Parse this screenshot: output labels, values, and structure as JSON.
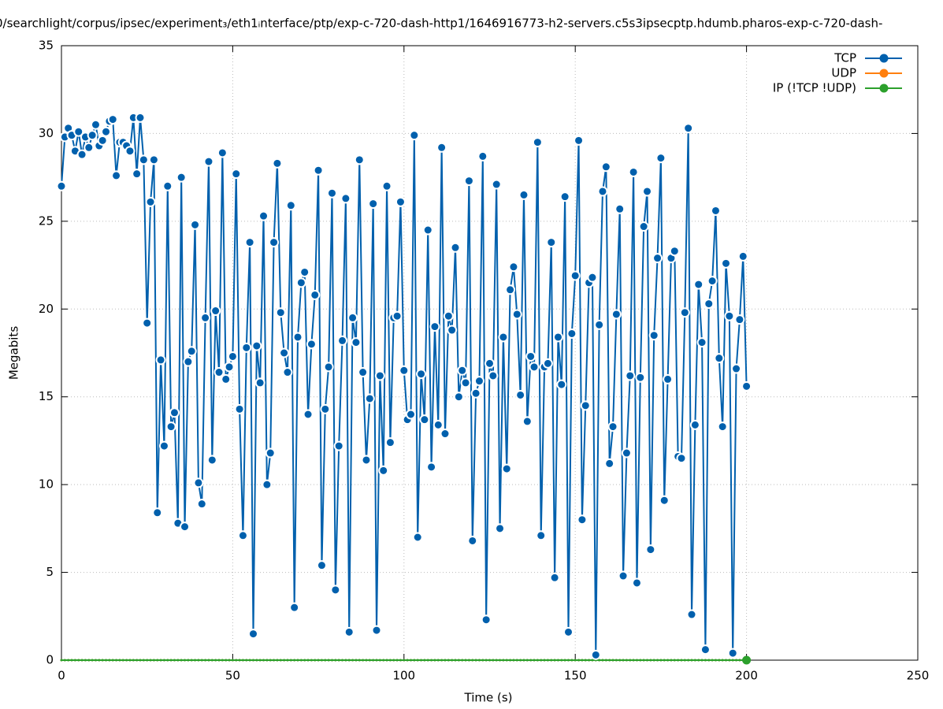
{
  "chart_data": {
    "type": "line",
    "title": "0/searchlight/corpus/ipsec/experiment₃/eth1ᵢnterface/ptp/exp-c-720-dash-http1/1646916773-h2-servers.c5s3ipsecptp.hdumb.pharos-exp-c-720-dash-",
    "x_label": "Time (s)",
    "y_label": "Megabits",
    "xlim": [
      0,
      250
    ],
    "xticks": [
      0,
      50,
      100,
      150,
      200,
      250
    ],
    "ylim": [
      0,
      35
    ],
    "yticks": [
      0,
      5,
      10,
      15,
      20,
      25,
      30,
      35
    ],
    "grid": true,
    "legend": "top-right",
    "x": [
      0,
      1,
      2,
      3,
      4,
      5,
      6,
      7,
      8,
      9,
      10,
      11,
      12,
      13,
      14,
      15,
      16,
      17,
      18,
      19,
      20,
      21,
      22,
      23,
      24,
      25,
      26,
      27,
      28,
      29,
      30,
      31,
      32,
      33,
      34,
      35,
      36,
      37,
      38,
      39,
      40,
      41,
      42,
      43,
      44,
      45,
      46,
      47,
      48,
      49,
      50,
      51,
      52,
      53,
      54,
      55,
      56,
      57,
      58,
      59,
      60,
      61,
      62,
      63,
      64,
      65,
      66,
      67,
      68,
      69,
      70,
      71,
      72,
      73,
      74,
      75,
      76,
      77,
      78,
      79,
      80,
      81,
      82,
      83,
      84,
      85,
      86,
      87,
      88,
      89,
      90,
      91,
      92,
      93,
      94,
      95,
      96,
      97,
      98,
      99,
      100,
      101,
      102,
      103,
      104,
      105,
      106,
      107,
      108,
      109,
      110,
      111,
      112,
      113,
      114,
      115,
      116,
      117,
      118,
      119,
      120,
      121,
      122,
      123,
      124,
      125,
      126,
      127,
      128,
      129,
      130,
      131,
      132,
      133,
      134,
      135,
      136,
      137,
      138,
      139,
      140,
      141,
      142,
      143,
      144,
      145,
      146,
      147,
      148,
      149,
      150,
      151,
      152,
      153,
      154,
      155,
      156,
      157,
      158,
      159,
      160,
      161,
      162,
      163,
      164,
      165,
      166,
      167,
      168,
      169,
      170,
      171,
      172,
      173,
      174,
      175,
      176,
      177,
      178,
      179,
      180,
      181,
      182,
      183,
      184,
      185,
      186,
      187,
      188,
      189,
      190,
      191,
      192,
      193,
      194,
      195,
      196,
      197,
      198,
      199,
      200
    ],
    "series": [
      {
        "name": "TCP",
        "color": "#0060ad",
        "values": [
          27.0,
          29.8,
          30.3,
          29.9,
          29.0,
          30.1,
          28.8,
          29.8,
          29.2,
          29.9,
          30.5,
          29.3,
          29.6,
          30.1,
          30.7,
          30.8,
          27.6,
          29.5,
          29.5,
          29.3,
          29.0,
          30.9,
          27.7,
          30.9,
          28.5,
          19.2,
          26.1,
          28.5,
          8.4,
          17.1,
          12.2,
          27.0,
          13.3,
          14.1,
          7.8,
          27.5,
          7.6,
          17.0,
          17.6,
          24.8,
          10.1,
          8.9,
          19.5,
          28.4,
          11.4,
          19.9,
          16.4,
          28.9,
          16.0,
          16.7,
          17.3,
          27.7,
          14.3,
          7.1,
          17.8,
          23.8,
          1.5,
          17.9,
          15.8,
          25.3,
          10.0,
          11.8,
          23.8,
          28.3,
          19.8,
          17.5,
          16.4,
          25.9,
          3.0,
          18.4,
          21.5,
          22.1,
          14.0,
          18.0,
          20.8,
          27.9,
          5.4,
          14.3,
          16.7,
          26.6,
          4.0,
          12.2,
          18.2,
          26.3,
          1.6,
          19.5,
          18.1,
          28.5,
          16.4,
          11.4,
          14.9,
          26.0,
          1.7,
          16.2,
          10.8,
          27.0,
          12.4,
          19.5,
          19.6,
          26.1,
          16.5,
          13.7,
          14.0,
          29.9,
          7.0,
          16.3,
          13.7,
          24.5,
          11.0,
          19.0,
          13.4,
          29.2,
          12.9,
          19.6,
          18.8,
          23.5,
          15.0,
          16.5,
          15.8,
          27.3,
          6.8,
          15.2,
          15.9,
          28.7,
          2.3,
          16.9,
          16.2,
          27.1,
          7.5,
          18.4,
          10.9,
          21.1,
          22.4,
          19.7,
          15.1,
          26.5,
          13.6,
          17.3,
          16.7,
          29.5,
          7.1,
          16.7,
          16.9,
          23.8,
          4.7,
          18.4,
          15.7,
          26.4,
          1.6,
          18.6,
          21.9,
          29.6,
          8.0,
          14.5,
          21.5,
          21.8,
          0.3,
          19.1,
          26.7,
          28.1,
          11.2,
          13.3,
          19.7,
          25.7,
          4.8,
          11.8,
          16.2,
          27.8,
          4.4,
          16.1,
          24.7,
          26.7,
          6.3,
          18.5,
          22.9,
          28.6,
          9.1,
          16.0,
          22.9,
          23.3,
          11.6,
          11.5,
          19.8,
          30.3,
          2.6,
          13.4,
          21.4,
          18.1,
          0.6,
          20.3,
          21.6,
          25.6,
          17.2,
          13.3,
          22.6,
          19.6,
          0.4,
          16.6,
          19.4,
          23.0,
          15.6
        ]
      },
      {
        "name": "UDP",
        "color": "#ff7f0e",
        "values": [
          0,
          0,
          0,
          0,
          0,
          0,
          0,
          0,
          0,
          0,
          0,
          0,
          0,
          0,
          0,
          0,
          0,
          0,
          0,
          0,
          0,
          0,
          0,
          0,
          0,
          0,
          0,
          0,
          0,
          0,
          0,
          0,
          0,
          0,
          0,
          0,
          0,
          0,
          0,
          0,
          0,
          0,
          0,
          0,
          0,
          0,
          0,
          0,
          0,
          0,
          0,
          0,
          0,
          0,
          0,
          0,
          0,
          0,
          0,
          0,
          0,
          0,
          0,
          0,
          0,
          0,
          0,
          0,
          0,
          0,
          0,
          0,
          0,
          0,
          0,
          0,
          0,
          0,
          0,
          0,
          0,
          0,
          0,
          0,
          0,
          0,
          0,
          0,
          0,
          0,
          0,
          0,
          0,
          0,
          0,
          0,
          0,
          0,
          0,
          0,
          0,
          0,
          0,
          0,
          0,
          0,
          0,
          0,
          0,
          0,
          0,
          0,
          0,
          0,
          0,
          0,
          0,
          0,
          0,
          0,
          0,
          0,
          0,
          0,
          0,
          0,
          0,
          0,
          0,
          0,
          0,
          0,
          0,
          0,
          0,
          0,
          0,
          0,
          0,
          0,
          0,
          0,
          0,
          0,
          0,
          0,
          0,
          0,
          0,
          0,
          0,
          0,
          0,
          0,
          0,
          0,
          0,
          0,
          0,
          0,
          0,
          0,
          0,
          0,
          0,
          0,
          0,
          0,
          0,
          0,
          0,
          0,
          0,
          0,
          0,
          0,
          0,
          0,
          0,
          0,
          0,
          0,
          0,
          0,
          0,
          0,
          0,
          0,
          0,
          0,
          0,
          0,
          0,
          0,
          0,
          0,
          0,
          0,
          0,
          0,
          0
        ]
      },
      {
        "name": "IP (!TCP  !UDP)",
        "color": "#2ca02c",
        "values": [
          0,
          0,
          0,
          0,
          0,
          0,
          0,
          0,
          0,
          0,
          0,
          0,
          0,
          0,
          0,
          0,
          0,
          0,
          0,
          0,
          0,
          0,
          0,
          0,
          0,
          0,
          0,
          0,
          0,
          0,
          0,
          0,
          0,
          0,
          0,
          0,
          0,
          0,
          0,
          0,
          0,
          0,
          0,
          0,
          0,
          0,
          0,
          0,
          0,
          0,
          0,
          0,
          0,
          0,
          0,
          0,
          0,
          0,
          0,
          0,
          0,
          0,
          0,
          0,
          0,
          0,
          0,
          0,
          0,
          0,
          0,
          0,
          0,
          0,
          0,
          0,
          0,
          0,
          0,
          0,
          0,
          0,
          0,
          0,
          0,
          0,
          0,
          0,
          0,
          0,
          0,
          0,
          0,
          0,
          0,
          0,
          0,
          0,
          0,
          0,
          0,
          0,
          0,
          0,
          0,
          0,
          0,
          0,
          0,
          0,
          0,
          0,
          0,
          0,
          0,
          0,
          0,
          0,
          0,
          0,
          0,
          0,
          0,
          0,
          0,
          0,
          0,
          0,
          0,
          0,
          0,
          0,
          0,
          0,
          0,
          0,
          0,
          0,
          0,
          0,
          0,
          0,
          0,
          0,
          0,
          0,
          0,
          0,
          0,
          0,
          0,
          0,
          0,
          0,
          0,
          0,
          0,
          0,
          0,
          0,
          0,
          0,
          0,
          0,
          0,
          0,
          0,
          0,
          0,
          0,
          0,
          0,
          0,
          0,
          0,
          0,
          0,
          0,
          0,
          0,
          0,
          0,
          0,
          0,
          0,
          0,
          0,
          0,
          0,
          0,
          0,
          0,
          0,
          0,
          0,
          0,
          0,
          0,
          0,
          0,
          0
        ]
      }
    ]
  }
}
